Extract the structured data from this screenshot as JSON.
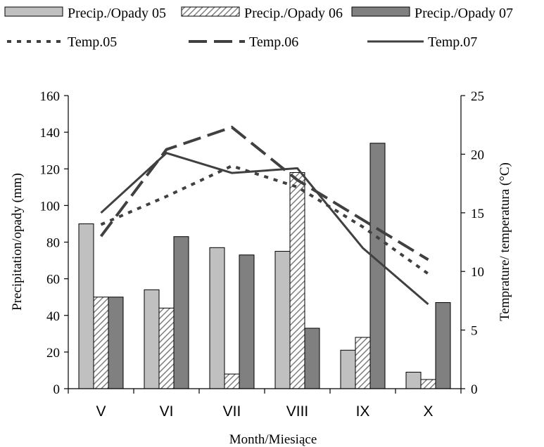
{
  "chart_data": {
    "type": "bar",
    "categories": [
      "V",
      "VI",
      "VII",
      "VIII",
      "IX",
      "X"
    ],
    "series": [
      {
        "name": "Precip./Opady 05",
        "kind": "bar",
        "axis": "left",
        "values": [
          90,
          54,
          77,
          75,
          21,
          9
        ]
      },
      {
        "name": "Precip./Opady 06",
        "kind": "bar",
        "axis": "left",
        "values": [
          50,
          44,
          8,
          118,
          28,
          5
        ]
      },
      {
        "name": "Precip./Opady 07",
        "kind": "bar",
        "axis": "left",
        "values": [
          50,
          83,
          73,
          33,
          134,
          47
        ]
      },
      {
        "name": "Temp.05",
        "kind": "line",
        "axis": "right",
        "values": [
          14.0,
          16.4,
          19.0,
          17.2,
          13.8,
          9.8
        ]
      },
      {
        "name": "Temp.06",
        "kind": "line",
        "axis": "right",
        "values": [
          13.0,
          20.4,
          22.3,
          17.8,
          14.4,
          11.0
        ]
      },
      {
        "name": "Temp.07",
        "kind": "line",
        "axis": "right",
        "values": [
          15.0,
          20.1,
          18.4,
          18.8,
          12.0,
          7.2
        ]
      }
    ],
    "ylabel": "Precipitation/opady (mm)",
    "y2label": "Temprature/ temperatura (°C)",
    "xlabel": "Month/Miesiące",
    "ylim": [
      0,
      160
    ],
    "y2lim": [
      0,
      25
    ],
    "yticks": [
      0,
      20,
      40,
      60,
      80,
      100,
      120,
      140,
      160
    ],
    "y2ticks": [
      0,
      5,
      10,
      15,
      20,
      25
    ],
    "grid": false,
    "legend_position": "top",
    "colors": {
      "precip05": "#c0c0c0",
      "precip06_hatch": "#7f7f7f",
      "precip07": "#808080",
      "line": "#404040",
      "axis": "#000000"
    }
  }
}
